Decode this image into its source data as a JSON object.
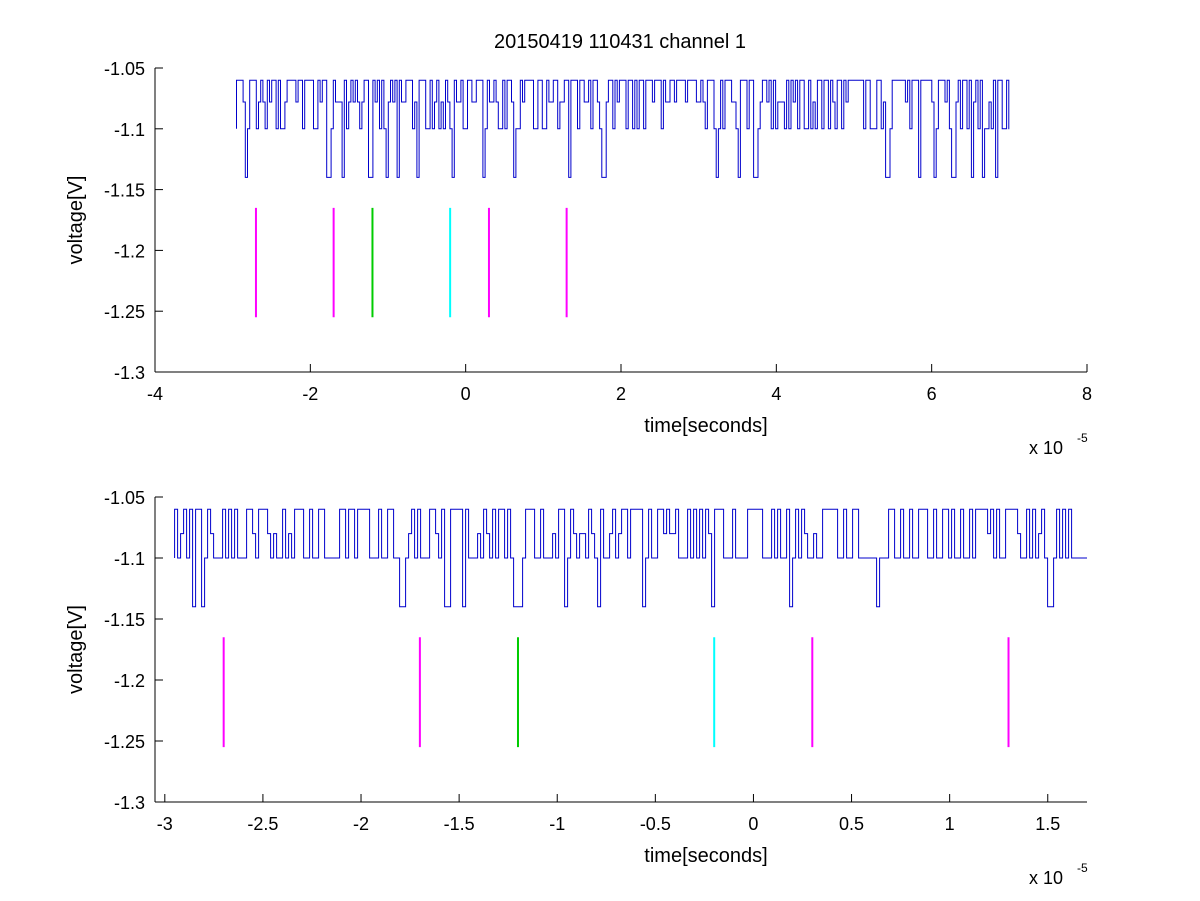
{
  "figure": {
    "title": "20150419 110431 channel 1"
  },
  "chart_data": [
    {
      "type": "line",
      "xlabel": "time[seconds]",
      "ylabel": "voltage[V]",
      "x_multiplier": "x 10",
      "x_exponent": "-5",
      "xlim": [
        -4,
        8
      ],
      "ylim": [
        -1.3,
        -1.05
      ],
      "xticks": [
        -4,
        -2,
        0,
        2,
        4,
        6,
        8
      ],
      "xtick_labels": [
        "-4",
        "-2",
        "0",
        "2",
        "4",
        "6",
        "8"
      ],
      "yticks": [
        -1.3,
        -1.25,
        -1.2,
        -1.15,
        -1.1,
        -1.05
      ],
      "ytick_labels": [
        "-1.3",
        "-1.25",
        "-1.2",
        "-1.15",
        "-1.1",
        "-1.05"
      ],
      "signal": {
        "color": "#0000cc",
        "x_range": [
          -2.95,
          7.0
        ],
        "baseline": -1.1,
        "high_level": -1.06,
        "low_level": -1.14,
        "dips": [
          -2.82,
          -1.75,
          -1.55,
          -1.2,
          -1.0,
          -0.85,
          -0.6,
          -0.15,
          0.25,
          0.65,
          1.35,
          1.8,
          3.25,
          3.55,
          3.75,
          5.45,
          5.85,
          6.05,
          6.3,
          6.55,
          6.68,
          6.85
        ]
      },
      "markers": [
        {
          "x": -2.7,
          "y_top": -1.165,
          "y_bottom": -1.255,
          "color": "#ff00ff"
        },
        {
          "x": -1.7,
          "y_top": -1.165,
          "y_bottom": -1.255,
          "color": "#ff00ff"
        },
        {
          "x": -1.2,
          "y_top": -1.165,
          "y_bottom": -1.255,
          "color": "#00cc00"
        },
        {
          "x": -0.2,
          "y_top": -1.165,
          "y_bottom": -1.255,
          "color": "#00ffff"
        },
        {
          "x": 0.3,
          "y_top": -1.165,
          "y_bottom": -1.255,
          "color": "#ff00ff"
        },
        {
          "x": 1.3,
          "y_top": -1.165,
          "y_bottom": -1.255,
          "color": "#ff00ff"
        }
      ]
    },
    {
      "type": "line",
      "xlabel": "time[seconds]",
      "ylabel": "voltage[V]",
      "x_multiplier": "x 10",
      "x_exponent": "-5",
      "xlim": [
        -3.05,
        1.7
      ],
      "ylim": [
        -1.3,
        -1.05
      ],
      "xticks": [
        -3,
        -2.5,
        -2,
        -1.5,
        -1,
        -0.5,
        0,
        0.5,
        1,
        1.5
      ],
      "xtick_labels": [
        "-3",
        "-2.5",
        "-2",
        "-1.5",
        "-1",
        "-0.5",
        "0",
        "0.5",
        "1",
        "1.5"
      ],
      "yticks": [
        -1.3,
        -1.25,
        -1.2,
        -1.15,
        -1.1,
        -1.05
      ],
      "ytick_labels": [
        "-1.3",
        "-1.25",
        "-1.2",
        "-1.15",
        "-1.1",
        "-1.05"
      ],
      "signal": {
        "color": "#0000cc",
        "x_range": [
          -2.95,
          1.7
        ],
        "baseline": -1.1,
        "high_level": -1.06,
        "low_level": -1.14,
        "dips": [
          -2.84,
          -2.8,
          -1.78,
          -1.55,
          -1.47,
          -1.2,
          -1.18,
          -0.95,
          -0.78,
          -0.55,
          -0.2,
          0.2,
          0.64,
          1.52
        ]
      },
      "markers": [
        {
          "x": -2.7,
          "y_top": -1.165,
          "y_bottom": -1.255,
          "color": "#ff00ff"
        },
        {
          "x": -1.7,
          "y_top": -1.165,
          "y_bottom": -1.255,
          "color": "#ff00ff"
        },
        {
          "x": -1.2,
          "y_top": -1.165,
          "y_bottom": -1.255,
          "color": "#00cc00"
        },
        {
          "x": -0.2,
          "y_top": -1.165,
          "y_bottom": -1.255,
          "color": "#00ffff"
        },
        {
          "x": 0.3,
          "y_top": -1.165,
          "y_bottom": -1.255,
          "color": "#ff00ff"
        },
        {
          "x": 1.3,
          "y_top": -1.165,
          "y_bottom": -1.255,
          "color": "#ff00ff"
        }
      ]
    }
  ]
}
